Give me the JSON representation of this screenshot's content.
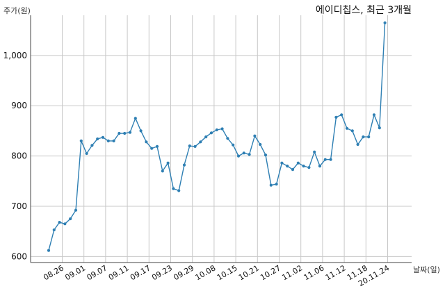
{
  "chart_data": {
    "type": "line",
    "title": "에이디칩스, 최근 3개월",
    "ylabel": "주가(원)",
    "xlabel": "날짜(일)",
    "ylim": [
      588,
      1080
    ],
    "yticks": [
      600,
      700,
      800,
      900,
      1000
    ],
    "ytick_labels": [
      "600",
      "700",
      "800",
      "900",
      "1,000"
    ],
    "grid": true,
    "color": "#2e7fb3",
    "xtick_labels": [
      "08.26",
      "09.01",
      "09.07",
      "09.11",
      "09.17",
      "09.23",
      "09.29",
      "10.08",
      "10.15",
      "10.21",
      "10.27",
      "11.02",
      "11.06",
      "11.12",
      "11.18",
      "20.11.24"
    ],
    "xtick_positions": [
      2.5,
      6.5,
      10.5,
      14.5,
      18.5,
      22.5,
      26.5,
      30.5,
      34.5,
      38.5,
      42.5,
      46.5,
      50.5,
      54.5,
      58.5,
      62.5
    ],
    "series": [
      {
        "values": [
          612,
          653,
          668,
          665,
          675,
          692,
          830,
          805,
          821,
          834,
          837,
          830,
          830,
          845,
          845,
          847,
          875,
          850,
          828,
          815,
          819,
          770,
          786,
          735,
          731,
          782,
          820,
          819,
          828,
          838,
          846,
          852,
          854,
          835,
          822,
          800,
          806,
          803,
          840,
          823,
          802,
          742,
          744,
          786,
          780,
          773,
          786,
          780,
          777,
          808,
          780,
          793,
          793,
          877,
          882,
          855,
          850,
          823,
          838,
          838,
          882,
          856,
          1065
        ]
      }
    ]
  }
}
